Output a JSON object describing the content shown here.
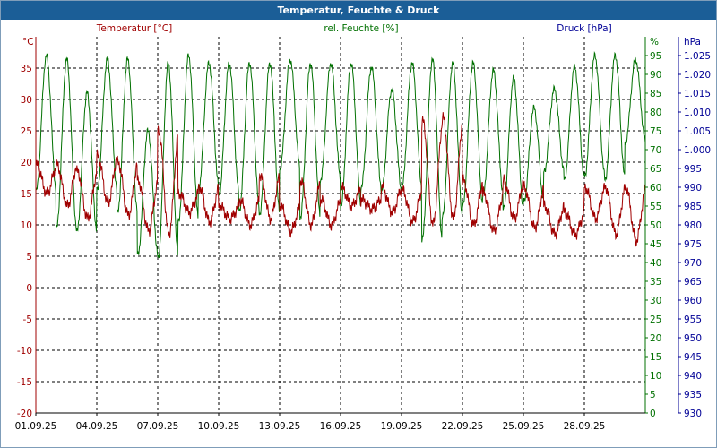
{
  "window": {
    "title": "Temperatur, Feuchte & Druck"
  },
  "colors": {
    "temperature": "#a00000",
    "humidity": "#007000",
    "pressure": "#000096",
    "titlebar": "#1b5e97",
    "grid": "#000000"
  },
  "chart_data": {
    "type": "line",
    "title": "Temperatur, Feuchte & Druck",
    "grid": true,
    "x_axis": {
      "ticks": [
        "01.09.25",
        "04.09.25",
        "07.09.25",
        "10.09.25",
        "13.09.25",
        "16.09.25",
        "19.09.25",
        "22.09.25",
        "25.09.25",
        "28.09.25"
      ],
      "range_days": [
        0,
        30
      ],
      "tick_step_days": 3
    },
    "y_axes": {
      "temperature": {
        "label": "Temperatur [°C]",
        "unit": "°C",
        "range": [
          -20,
          40
        ],
        "ticks": [
          "35",
          "30",
          "25",
          "20",
          "15",
          "10",
          "5",
          "0",
          "-5",
          "-10",
          "-15",
          "-20"
        ]
      },
      "humidity": {
        "label": "rel. Feuchte [%]",
        "unit": "%",
        "range": [
          0,
          100
        ],
        "ticks": [
          "95",
          "90",
          "85",
          "80",
          "75",
          "70",
          "65",
          "60",
          "55",
          "50",
          "45",
          "40",
          "35",
          "30",
          "25",
          "20",
          "15",
          "10",
          "5",
          "0"
        ]
      },
      "pressure": {
        "label": "Druck [hPa]",
        "unit": "hPa",
        "range": [
          930,
          1030
        ],
        "ticks": [
          "1.025",
          "1.020",
          "1.015",
          "1.010",
          "1.005",
          "1.000",
          "995",
          "990",
          "985",
          "980",
          "975",
          "970",
          "965",
          "960",
          "955",
          "950",
          "945",
          "940",
          "935",
          "930"
        ]
      }
    },
    "series": [
      {
        "name": "Temperatur [°C]",
        "axis": "temperature",
        "day_max": [
          19.5,
          19.5,
          18.5,
          21,
          20,
          17,
          25,
          15,
          16,
          13,
          14,
          18,
          13,
          17,
          14,
          16,
          14,
          16,
          15.5,
          26.5,
          27,
          17,
          15,
          17,
          16,
          13,
          12,
          16,
          16,
          16
        ],
        "day_min": [
          15,
          13,
          11,
          13.5,
          11.5,
          9,
          8.5,
          12,
          10.5,
          11,
          10,
          11,
          9,
          10,
          10,
          13,
          12.5,
          12,
          10.5,
          10,
          11,
          10,
          9,
          11,
          9.5,
          8.5,
          8.5,
          11,
          8.5,
          7.5
        ]
      },
      {
        "name": "rel. Feuchte [%]",
        "axis": "humidity",
        "day_min": [
          59,
          49,
          48,
          59,
          53,
          42,
          41,
          51,
          60,
          58,
          54,
          53,
          65,
          52,
          62,
          55,
          60,
          59,
          60,
          46,
          52,
          55,
          58,
          54,
          56,
          64,
          62,
          63,
          62,
          72
        ],
        "day_max": [
          95,
          94,
          85,
          94,
          94,
          75,
          93,
          95,
          93,
          93,
          93,
          93,
          94,
          93,
          93,
          93,
          92,
          86,
          93,
          94,
          93,
          93,
          91,
          89,
          81,
          86,
          92,
          95,
          95,
          94
        ]
      }
    ]
  }
}
